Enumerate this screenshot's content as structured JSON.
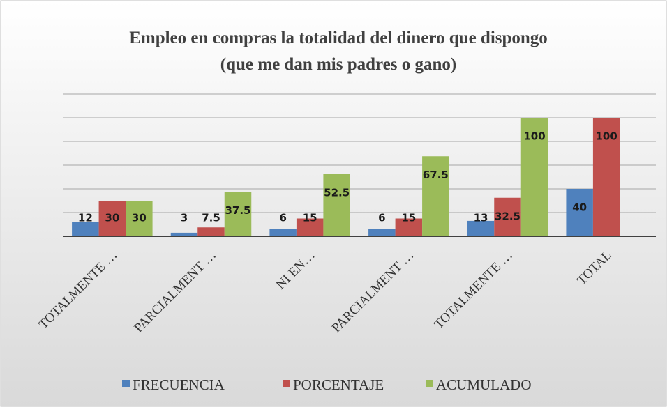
{
  "chart_data": {
    "type": "bar",
    "title": [
      "Empleo en compras la totalidad del dinero que dispongo",
      "(que me dan mis padres o gano)"
    ],
    "categories": [
      "TOTALMENTE …",
      "PARCIALMENT …",
      "NI EN…",
      "PARCIALMENT …",
      "TOTALMENTE …",
      "TOTAL"
    ],
    "series": [
      {
        "name": "FRECUENCIA",
        "color": "#4f81bd",
        "values": [
          12,
          3,
          6,
          6,
          13,
          40
        ]
      },
      {
        "name": "PORCENTAJE",
        "color": "#c0504d",
        "values": [
          30,
          7.5,
          15,
          15,
          32.5,
          100
        ]
      },
      {
        "name": "ACUMULADO",
        "color": "#9bbb59",
        "values": [
          30,
          37.5,
          52.5,
          67.5,
          100,
          null
        ]
      }
    ],
    "ylim": [
      0,
      120
    ],
    "yticks": [
      0,
      20,
      40,
      60,
      80,
      100,
      120
    ],
    "grid": true,
    "legend": "bottom"
  }
}
